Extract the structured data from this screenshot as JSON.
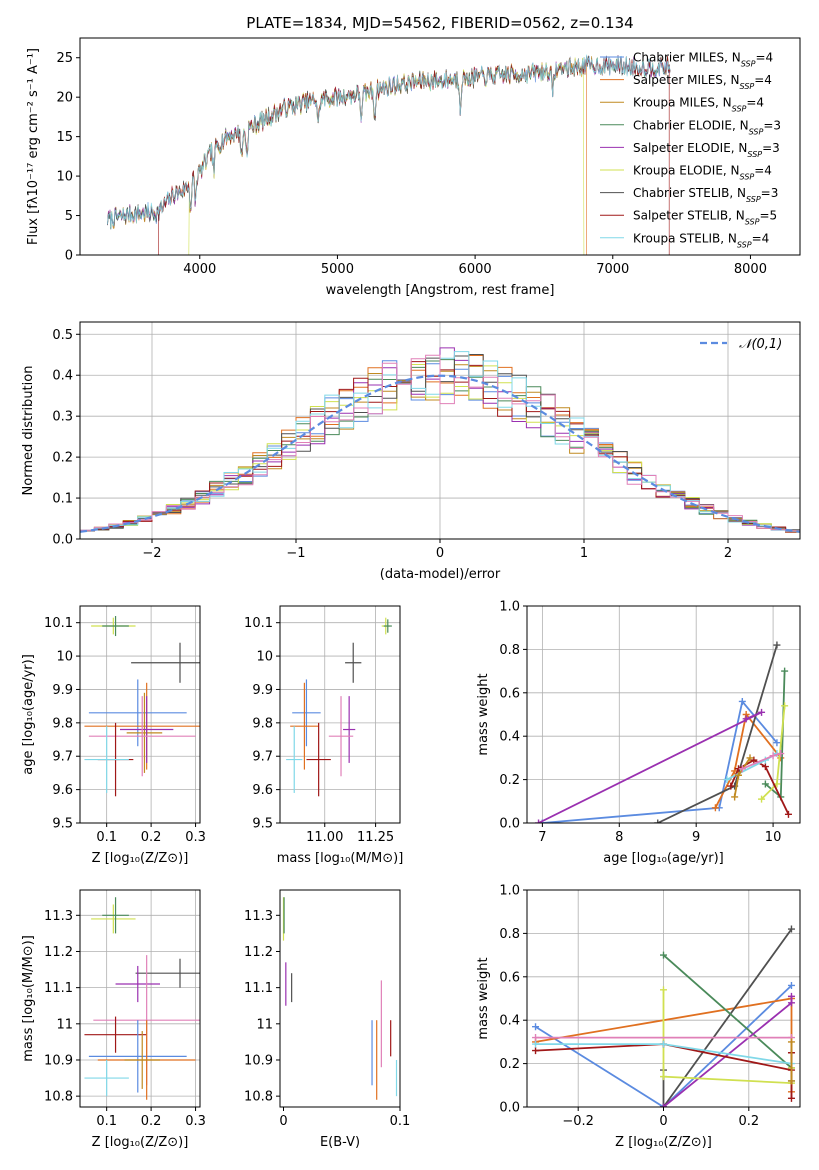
{
  "title": "PLATE=1834, MJD=54562, FIBERID=0562, z=0.134",
  "colors": {
    "chabrier_miles": "#5b8be0",
    "salpeter_miles": "#e07020",
    "kroupa_miles": "#c08a20",
    "chabrier_elodie": "#4a8a5a",
    "salpeter_elodie": "#9a30b0",
    "kroupa_elodie": "#d0e050",
    "chabrier_stelib": "#505050",
    "salpeter_stelib": "#a01818",
    "kroupa_stelib": "#80d8e8",
    "pink": "#e080b8",
    "grid": "#b0b0b0"
  },
  "chart_data": [
    {
      "id": "spectrum",
      "type": "line",
      "title": "PLATE=1834, MJD=54562, FIBERID=0562, z=0.134",
      "xlabel": "wavelength [Angstrom, rest frame]",
      "ylabel": "Flux [fλ10⁻¹⁷ erg cm⁻² s⁻¹ A⁻¹]",
      "xlim": [
        3130,
        8360
      ],
      "ylim": [
        0,
        27.5
      ],
      "xticks": [
        4000,
        5000,
        6000,
        7000,
        8000
      ],
      "yticks": [
        0,
        5,
        10,
        15,
        20,
        25
      ],
      "grid": false,
      "legend_position": "right",
      "series": [
        {
          "name": "Chabrier MILES, N_SSP=4",
          "color_key": "chabrier_miles"
        },
        {
          "name": "Salpeter MILES, N_SSP=4",
          "color_key": "salpeter_miles"
        },
        {
          "name": "Kroupa MILES, N_SSP=4",
          "color_key": "kroupa_miles"
        },
        {
          "name": "Chabrier ELODIE, N_SSP=3",
          "color_key": "chabrier_elodie"
        },
        {
          "name": "Salpeter ELODIE, N_SSP=3",
          "color_key": "salpeter_elodie"
        },
        {
          "name": "Kroupa ELODIE, N_SSP=4",
          "color_key": "kroupa_elodie"
        },
        {
          "name": "Chabrier STELIB, N_SSP=3",
          "color_key": "chabrier_stelib"
        },
        {
          "name": "Salpeter STELIB, N_SSP=5",
          "color_key": "salpeter_stelib"
        },
        {
          "name": "Kroupa STELIB, N_SSP=4",
          "color_key": "kroupa_stelib"
        }
      ],
      "continuum": [
        [
          3330,
          4.5
        ],
        [
          3500,
          5.2
        ],
        [
          3700,
          5.4
        ],
        [
          3800,
          7.5
        ],
        [
          3900,
          8.5
        ],
        [
          4000,
          10.5
        ],
        [
          4100,
          13.5
        ],
        [
          4200,
          15.0
        ],
        [
          4300,
          15.5
        ],
        [
          4400,
          16.5
        ],
        [
          4500,
          17.5
        ],
        [
          4600,
          18.5
        ],
        [
          4800,
          19.5
        ],
        [
          5000,
          20.0
        ],
        [
          5200,
          20.5
        ],
        [
          5400,
          21.5
        ],
        [
          5600,
          22.0
        ],
        [
          5800,
          22.2
        ],
        [
          6000,
          22.5
        ],
        [
          6200,
          22.8
        ],
        [
          6400,
          23.0
        ],
        [
          6600,
          23.5
        ],
        [
          6800,
          24.0
        ],
        [
          7000,
          24.0
        ],
        [
          7200,
          23.8
        ],
        [
          7400,
          23.8
        ]
      ],
      "absorption_lines": [
        3934,
        3969,
        4102,
        4304,
        4341,
        4861,
        5175,
        5270,
        5892,
        6563
      ],
      "template_dropouts": [
        {
          "color_key": "salpeter_stelib",
          "x": 3700
        },
        {
          "color_key": "kroupa_elodie",
          "x": 3920
        },
        {
          "color_key": "kroupa_elodie",
          "x": 6790
        },
        {
          "color_key": "salpeter_miles",
          "x": 6810
        },
        {
          "color_key": "salpeter_stelib",
          "x": 7410
        }
      ]
    },
    {
      "id": "residuals",
      "type": "histogram",
      "xlabel": "(data-model)/error",
      "ylabel": "Normed distribution",
      "xlim": [
        -2.5,
        2.5
      ],
      "ylim": [
        0,
        0.53
      ],
      "xticks": [
        -2,
        -1,
        0,
        1,
        2
      ],
      "yticks": [
        0.0,
        0.1,
        0.2,
        0.3,
        0.4,
        0.5
      ],
      "grid": true,
      "legend_position": "top-right",
      "reference_curve": {
        "name": "𝒩(0,1)",
        "color_key": "chabrier_miles",
        "style": "dashed"
      },
      "bin_width": 0.1
    },
    {
      "id": "age_vs_Z",
      "type": "scatter",
      "xlabel": "Z [log₁₀(Z/Z⊙)]",
      "ylabel": "age  [log₁₀(age/yr)]",
      "xlim": [
        0.04,
        0.31
      ],
      "ylim": [
        9.5,
        10.15
      ],
      "xticks": [
        0.1,
        0.2,
        0.3
      ],
      "yticks": [
        9.5,
        9.6,
        9.7,
        9.8,
        9.9,
        10.0,
        10.1
      ],
      "grid": true,
      "points": [
        {
          "color_key": "kroupa_elodie",
          "x": 0.115,
          "y": 10.09,
          "xerr": 0.05,
          "yerr": 0.025
        },
        {
          "color_key": "chabrier_elodie",
          "x": 0.12,
          "y": 10.09,
          "xerr": 0.03,
          "yerr": 0.03
        },
        {
          "color_key": "chabrier_stelib",
          "x": 0.265,
          "y": 9.98,
          "xerr": 0.11,
          "yerr": 0.06
        },
        {
          "color_key": "chabrier_miles",
          "x": 0.17,
          "y": 9.83,
          "xerr": 0.11,
          "yerr": 0.1
        },
        {
          "color_key": "salpeter_miles",
          "x": 0.19,
          "y": 9.79,
          "xerr": 0.14,
          "yerr": 0.13
        },
        {
          "color_key": "kroupa_miles",
          "x": 0.185,
          "y": 9.77,
          "xerr": 0.04,
          "yerr": 0.12
        },
        {
          "color_key": "salpeter_elodie",
          "x": 0.19,
          "y": 9.78,
          "xerr": 0.06,
          "yerr": 0.1
        },
        {
          "color_key": "pink",
          "x": 0.18,
          "y": 9.76,
          "xerr": 0.12,
          "yerr": 0.12
        },
        {
          "color_key": "salpeter_stelib",
          "x": 0.12,
          "y": 9.69,
          "xerr": 0.04,
          "yerr": 0.11
        },
        {
          "color_key": "kroupa_stelib",
          "x": 0.1,
          "y": 9.69,
          "xerr": 0.05,
          "yerr": 0.1
        }
      ]
    },
    {
      "id": "age_vs_mass",
      "type": "scatter",
      "xlabel": "mass [log₁₀(M/M⊙)]",
      "xlim": [
        10.78,
        11.37
      ],
      "ylim": [
        9.5,
        10.15
      ],
      "xticks": [
        11.0,
        11.25
      ],
      "xtick_labels": [
        "11.00",
        "11.25"
      ],
      "yticks": [
        9.5,
        9.6,
        9.7,
        9.8,
        9.9,
        10.0,
        10.1
      ],
      "grid": true,
      "points": [
        {
          "color_key": "kroupa_elodie",
          "x": 11.3,
          "y": 10.09,
          "xerr": 0.02,
          "yerr": 0.025
        },
        {
          "color_key": "chabrier_elodie",
          "x": 11.31,
          "y": 10.09,
          "xerr": 0.02,
          "yerr": 0.02
        },
        {
          "color_key": "chabrier_stelib",
          "x": 11.14,
          "y": 9.98,
          "xerr": 0.04,
          "yerr": 0.06
        },
        {
          "color_key": "chabrier_miles",
          "x": 10.91,
          "y": 9.83,
          "xerr": 0.07,
          "yerr": 0.1
        },
        {
          "color_key": "salpeter_miles",
          "x": 10.9,
          "y": 9.79,
          "xerr": 0.07,
          "yerr": 0.13
        },
        {
          "color_key": "salpeter_elodie",
          "x": 11.12,
          "y": 9.78,
          "xerr": 0.03,
          "yerr": 0.1
        },
        {
          "color_key": "pink",
          "x": 11.08,
          "y": 9.76,
          "xerr": 0.06,
          "yerr": 0.12
        },
        {
          "color_key": "salpeter_stelib",
          "x": 10.97,
          "y": 9.69,
          "xerr": 0.06,
          "yerr": 0.11
        },
        {
          "color_key": "kroupa_stelib",
          "x": 10.85,
          "y": 9.69,
          "xerr": 0.04,
          "yerr": 0.1
        }
      ]
    },
    {
      "id": "weight_vs_age",
      "type": "line",
      "xlabel": "age  [log₁₀(age/yr)]",
      "ylabel": "mass weight",
      "xlim": [
        6.8,
        10.35
      ],
      "ylim": [
        0,
        1.0
      ],
      "xticks": [
        7,
        8,
        9,
        10
      ],
      "yticks": [
        0.0,
        0.2,
        0.4,
        0.6,
        0.8,
        1.0
      ],
      "grid": true,
      "series": [
        {
          "color_key": "chabrier_miles",
          "x": [
            7.0,
            9.3,
            9.6,
            10.05
          ],
          "y": [
            0.0,
            0.07,
            0.56,
            0.37
          ]
        },
        {
          "color_key": "salpeter_miles",
          "x": [
            9.25,
            9.5,
            9.65,
            10.1
          ],
          "y": [
            0.07,
            0.24,
            0.5,
            0.3
          ]
        },
        {
          "color_key": "chabrier_stelib",
          "x": [
            8.5,
            9.5,
            10.05
          ],
          "y": [
            0.0,
            0.17,
            0.82
          ]
        },
        {
          "color_key": "chabrier_elodie",
          "x": [
            9.9,
            10.1,
            10.15
          ],
          "y": [
            0.18,
            0.12,
            0.7
          ]
        },
        {
          "color_key": "salpeter_elodie",
          "x": [
            6.95,
            9.85,
            9.65
          ],
          "y": [
            0.0,
            0.51,
            0.48
          ]
        },
        {
          "color_key": "kroupa_elodie",
          "x": [
            9.85,
            10.05,
            10.15
          ],
          "y": [
            0.11,
            0.18,
            0.54
          ]
        },
        {
          "color_key": "salpeter_stelib",
          "x": [
            9.45,
            9.55,
            9.75,
            9.9,
            10.2
          ],
          "y": [
            0.17,
            0.25,
            0.29,
            0.26,
            0.04
          ]
        },
        {
          "color_key": "kroupa_stelib",
          "x": [
            9.4,
            9.9,
            10.05
          ],
          "y": [
            0.2,
            0.29,
            0.32
          ]
        },
        {
          "color_key": "kroupa_miles",
          "x": [
            9.5,
            9.55,
            9.7
          ],
          "y": [
            0.12,
            0.22,
            0.3
          ]
        },
        {
          "color_key": "pink",
          "x": [
            9.6,
            10.0,
            10.1
          ],
          "y": [
            0.25,
            0.31,
            0.32
          ]
        }
      ]
    },
    {
      "id": "mass_vs_Z",
      "type": "scatter",
      "xlabel": "Z [log₁₀(Z/Z⊙)]",
      "ylabel": "mass [log₁₀(M/M⊙)]",
      "xlim": [
        0.04,
        0.31
      ],
      "ylim": [
        10.77,
        11.37
      ],
      "xticks": [
        0.1,
        0.2,
        0.3
      ],
      "yticks": [
        10.8,
        10.9,
        11.0,
        11.1,
        11.2,
        11.3
      ],
      "grid": true,
      "points": [
        {
          "color_key": "kroupa_elodie",
          "x": 0.115,
          "y": 11.29,
          "xerr": 0.05,
          "yerr": 0.04
        },
        {
          "color_key": "chabrier_elodie",
          "x": 0.12,
          "y": 11.3,
          "xerr": 0.03,
          "yerr": 0.05
        },
        {
          "color_key": "chabrier_stelib",
          "x": 0.265,
          "y": 11.14,
          "xerr": 0.1,
          "yerr": 0.04
        },
        {
          "color_key": "salpeter_elodie",
          "x": 0.17,
          "y": 11.11,
          "xerr": 0.05,
          "yerr": 0.05
        },
        {
          "color_key": "pink",
          "x": 0.19,
          "y": 11.01,
          "xerr": 0.12,
          "yerr": 0.18
        },
        {
          "color_key": "salpeter_stelib",
          "x": 0.12,
          "y": 10.97,
          "xerr": 0.07,
          "yerr": 0.05
        },
        {
          "color_key": "chabrier_miles",
          "x": 0.17,
          "y": 10.91,
          "xerr": 0.11,
          "yerr": 0.1
        },
        {
          "color_key": "salpeter_miles",
          "x": 0.19,
          "y": 10.9,
          "xerr": 0.11,
          "yerr": 0.11
        },
        {
          "color_key": "kroupa_miles",
          "x": 0.18,
          "y": 10.9,
          "xerr": 0.04,
          "yerr": 0.08
        },
        {
          "color_key": "kroupa_stelib",
          "x": 0.1,
          "y": 10.85,
          "xerr": 0.05,
          "yerr": 0.05
        }
      ]
    },
    {
      "id": "mass_vs_ebv",
      "type": "scatter",
      "xlabel": "E(B-V)",
      "xlim": [
        -0.003,
        0.1
      ],
      "ylim": [
        10.77,
        11.37
      ],
      "xticks": [
        0.0,
        0.1
      ],
      "yticks": [
        10.8,
        10.9,
        11.0,
        11.1,
        11.2,
        11.3
      ],
      "grid": false,
      "points": [
        {
          "color_key": "kroupa_elodie",
          "x": 0.0,
          "y": 11.29,
          "xerr": 0.0,
          "yerr": 0.06
        },
        {
          "color_key": "chabrier_elodie",
          "x": 0.0005,
          "y": 11.3,
          "xerr": 0.0,
          "yerr": 0.05
        },
        {
          "color_key": "salpeter_elodie",
          "x": 0.002,
          "y": 11.11,
          "xerr": 0.0,
          "yerr": 0.06
        },
        {
          "color_key": "chabrier_stelib",
          "x": 0.007,
          "y": 11.1,
          "xerr": 0.0,
          "yerr": 0.04
        },
        {
          "color_key": "pink",
          "x": 0.084,
          "y": 11.0,
          "xerr": 0.0,
          "yerr": 0.12
        },
        {
          "color_key": "salpeter_stelib",
          "x": 0.092,
          "y": 10.96,
          "xerr": 0.0,
          "yerr": 0.05
        },
        {
          "color_key": "chabrier_miles",
          "x": 0.076,
          "y": 10.92,
          "xerr": 0.0,
          "yerr": 0.09
        },
        {
          "color_key": "salpeter_miles",
          "x": 0.08,
          "y": 10.9,
          "xerr": 0.0,
          "yerr": 0.11
        },
        {
          "color_key": "kroupa_stelib",
          "x": 0.097,
          "y": 10.85,
          "xerr": 0.0,
          "yerr": 0.05
        }
      ]
    },
    {
      "id": "weight_vs_Z",
      "type": "line",
      "xlabel": "Z [log₁₀(Z/Z⊙)]",
      "ylabel": "mass weight",
      "xlim": [
        -0.32,
        0.32
      ],
      "ylim": [
        0,
        1.0
      ],
      "xticks": [
        -0.2,
        0.0,
        0.2
      ],
      "yticks": [
        0.0,
        0.2,
        0.4,
        0.6,
        0.8,
        1.0
      ],
      "grid": true,
      "series": [
        {
          "color_key": "chabrier_miles",
          "x": [
            -0.3,
            0.0,
            0.3
          ],
          "y": [
            0.37,
            0.0,
            0.56
          ]
        },
        {
          "color_key": "salpeter_miles",
          "x": [
            -0.3,
            0.3,
            0.3
          ],
          "y": [
            0.3,
            0.5,
            0.07
          ]
        },
        {
          "color_key": "chabrier_stelib",
          "x": [
            0.0,
            0.0,
            0.3
          ],
          "y": [
            0.17,
            0.0,
            0.82
          ]
        },
        {
          "color_key": "chabrier_elodie",
          "x": [
            0.0,
            0.3,
            0.3
          ],
          "y": [
            0.7,
            0.18,
            0.12
          ]
        },
        {
          "color_key": "salpeter_elodie",
          "x": [
            0.0,
            0.3,
            0.3
          ],
          "y": [
            0.0,
            0.48,
            0.51
          ]
        },
        {
          "color_key": "kroupa_elodie",
          "x": [
            0.0,
            0.0,
            0.3,
            0.3
          ],
          "y": [
            0.54,
            0.14,
            0.11,
            0.18
          ]
        },
        {
          "color_key": "salpeter_stelib",
          "x": [
            -0.3,
            0.0,
            0.3,
            0.3,
            0.3
          ],
          "y": [
            0.26,
            0.29,
            0.17,
            0.04,
            0.25
          ]
        },
        {
          "color_key": "kroupa_stelib",
          "x": [
            -0.3,
            0.0,
            0.3
          ],
          "y": [
            0.29,
            0.29,
            0.2
          ]
        },
        {
          "color_key": "pink",
          "x": [
            -0.3,
            0.3
          ],
          "y": [
            0.32,
            0.32
          ]
        },
        {
          "color_key": "kroupa_miles",
          "x": [
            0.3,
            0.3
          ],
          "y": [
            0.12,
            0.3
          ]
        }
      ]
    }
  ]
}
